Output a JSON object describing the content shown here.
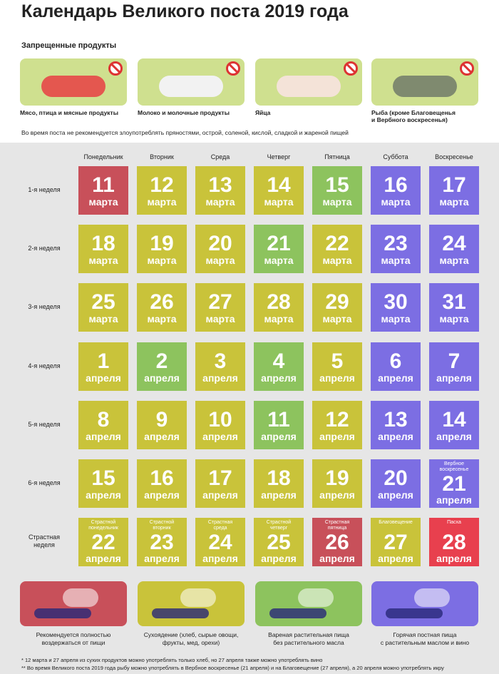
{
  "title": "Календарь Великого поста 2019 года",
  "forbidden": {
    "heading": "Запрещенные продукты",
    "items": [
      "Мясо, птица и мясные продукты",
      "Молоко и молочные продукты",
      "Яйца",
      "Рыба (кроме Благовещенья\nи Вербного воскресенья)"
    ],
    "note": "Во время поста не рекомендуется злоупотреблять пряностями, острой, соленой, кислой, сладкой и жареной пищей"
  },
  "calendar": {
    "days": [
      "Понедельник",
      "Вторник",
      "Среда",
      "Четверг",
      "Пятница",
      "Суббота",
      "Воскресенье"
    ],
    "weeks": [
      {
        "label": "1-я неделя",
        "days": [
          {
            "day": 11,
            "month": "марта",
            "color": "#c8505a"
          },
          {
            "day": 12,
            "month": "марта",
            "color": "#c9c33a"
          },
          {
            "day": 13,
            "month": "марта",
            "color": "#c9c33a"
          },
          {
            "day": 14,
            "month": "марта",
            "color": "#c9c33a"
          },
          {
            "day": 15,
            "month": "марта",
            "color": "#8dc35e"
          },
          {
            "day": 16,
            "month": "марта",
            "color": "#7c6ee3"
          },
          {
            "day": 17,
            "month": "марта",
            "color": "#7c6ee3"
          }
        ]
      },
      {
        "label": "2-я неделя",
        "days": [
          {
            "day": 18,
            "month": "марта",
            "color": "#c9c33a"
          },
          {
            "day": 19,
            "month": "марта",
            "color": "#c9c33a"
          },
          {
            "day": 20,
            "month": "марта",
            "color": "#c9c33a"
          },
          {
            "day": 21,
            "month": "марта",
            "color": "#8dc35e"
          },
          {
            "day": 22,
            "month": "марта",
            "color": "#c9c33a"
          },
          {
            "day": 23,
            "month": "марта",
            "color": "#7c6ee3"
          },
          {
            "day": 24,
            "month": "марта",
            "color": "#7c6ee3"
          }
        ]
      },
      {
        "label": "3-я неделя",
        "days": [
          {
            "day": 25,
            "month": "марта",
            "color": "#c9c33a"
          },
          {
            "day": 26,
            "month": "марта",
            "color": "#c9c33a"
          },
          {
            "day": 27,
            "month": "марта",
            "color": "#c9c33a"
          },
          {
            "day": 28,
            "month": "марта",
            "color": "#c9c33a"
          },
          {
            "day": 29,
            "month": "марта",
            "color": "#c9c33a"
          },
          {
            "day": 30,
            "month": "марта",
            "color": "#7c6ee3"
          },
          {
            "day": 31,
            "month": "марта",
            "color": "#7c6ee3"
          }
        ]
      },
      {
        "label": "4-я неделя",
        "days": [
          {
            "day": 1,
            "month": "апреля",
            "color": "#c9c33a"
          },
          {
            "day": 2,
            "month": "апреля",
            "color": "#8dc35e"
          },
          {
            "day": 3,
            "month": "апреля",
            "color": "#c9c33a"
          },
          {
            "day": 4,
            "month": "апреля",
            "color": "#8dc35e"
          },
          {
            "day": 5,
            "month": "апреля",
            "color": "#c9c33a"
          },
          {
            "day": 6,
            "month": "апреля",
            "color": "#7c6ee3"
          },
          {
            "day": 7,
            "month": "апреля",
            "color": "#7c6ee3"
          }
        ]
      },
      {
        "label": "5-я неделя",
        "days": [
          {
            "day": 8,
            "month": "апреля",
            "color": "#c9c33a"
          },
          {
            "day": 9,
            "month": "апреля",
            "color": "#c9c33a"
          },
          {
            "day": 10,
            "month": "апреля",
            "color": "#c9c33a"
          },
          {
            "day": 11,
            "month": "апреля",
            "color": "#8dc35e"
          },
          {
            "day": 12,
            "month": "апреля",
            "color": "#c9c33a"
          },
          {
            "day": 13,
            "month": "апреля",
            "color": "#7c6ee3"
          },
          {
            "day": 14,
            "month": "апреля",
            "color": "#7c6ee3"
          }
        ]
      },
      {
        "label": "6-я неделя",
        "days": [
          {
            "day": 15,
            "month": "апреля",
            "color": "#c9c33a"
          },
          {
            "day": 16,
            "month": "апреля",
            "color": "#c9c33a"
          },
          {
            "day": 17,
            "month": "апреля",
            "color": "#c9c33a"
          },
          {
            "day": 18,
            "month": "апреля",
            "color": "#c9c33a"
          },
          {
            "day": 19,
            "month": "апреля",
            "color": "#c9c33a"
          },
          {
            "day": 20,
            "month": "апреля",
            "color": "#7c6ee3"
          },
          {
            "day": 21,
            "month": "апреля",
            "color": "#7c6ee3",
            "note": "Вербное\nвоскресенье"
          }
        ]
      },
      {
        "label": "Страстная\nнеделя",
        "days": [
          {
            "day": 22,
            "month": "апреля",
            "color": "#c9c33a",
            "note": "Страстной\nпонедельник"
          },
          {
            "day": 23,
            "month": "апреля",
            "color": "#c9c33a",
            "note": "Страстной\nвторник"
          },
          {
            "day": 24,
            "month": "апреля",
            "color": "#c9c33a",
            "note": "Страстная\nсреда"
          },
          {
            "day": 25,
            "month": "апреля",
            "color": "#c9c33a",
            "note": "Страстной\nчетверг"
          },
          {
            "day": 26,
            "month": "апреля",
            "color": "#c8505a",
            "note": "Страстная\nпятница"
          },
          {
            "day": 27,
            "month": "апреля",
            "color": "#c9c33a",
            "note": "Благовещение"
          },
          {
            "day": 28,
            "month": "апреля",
            "color": "#e8404e",
            "note": "Пасха"
          }
        ]
      }
    ]
  },
  "legend": [
    {
      "text": "Рекомендуется полностью\nвоздержаться от пищи",
      "color": "#c8505a"
    },
    {
      "text": "Сухоядение (хлеб, сырые овощи,\nфрукты, мед, орехи)",
      "color": "#c9c33a"
    },
    {
      "text": "Вареная растительная пища\nбез растительного масла",
      "color": "#8dc35e"
    },
    {
      "text": "Горячая постная пища\nс растительным маслом и вино",
      "color": "#7c6ee3"
    }
  ],
  "footnotes": [
    "* 12 марта и 27 апреля из сухих продуктов можно употреблять только хлеб, но 27 апреля также можно употреблять вино",
    "** Во время Великого поста 2019 года рыбу можно употреблять в Вербное воскресенье (21 апреля) и на Благовещение (27 апреля), а 20 апреля можно употреблять икру"
  ]
}
